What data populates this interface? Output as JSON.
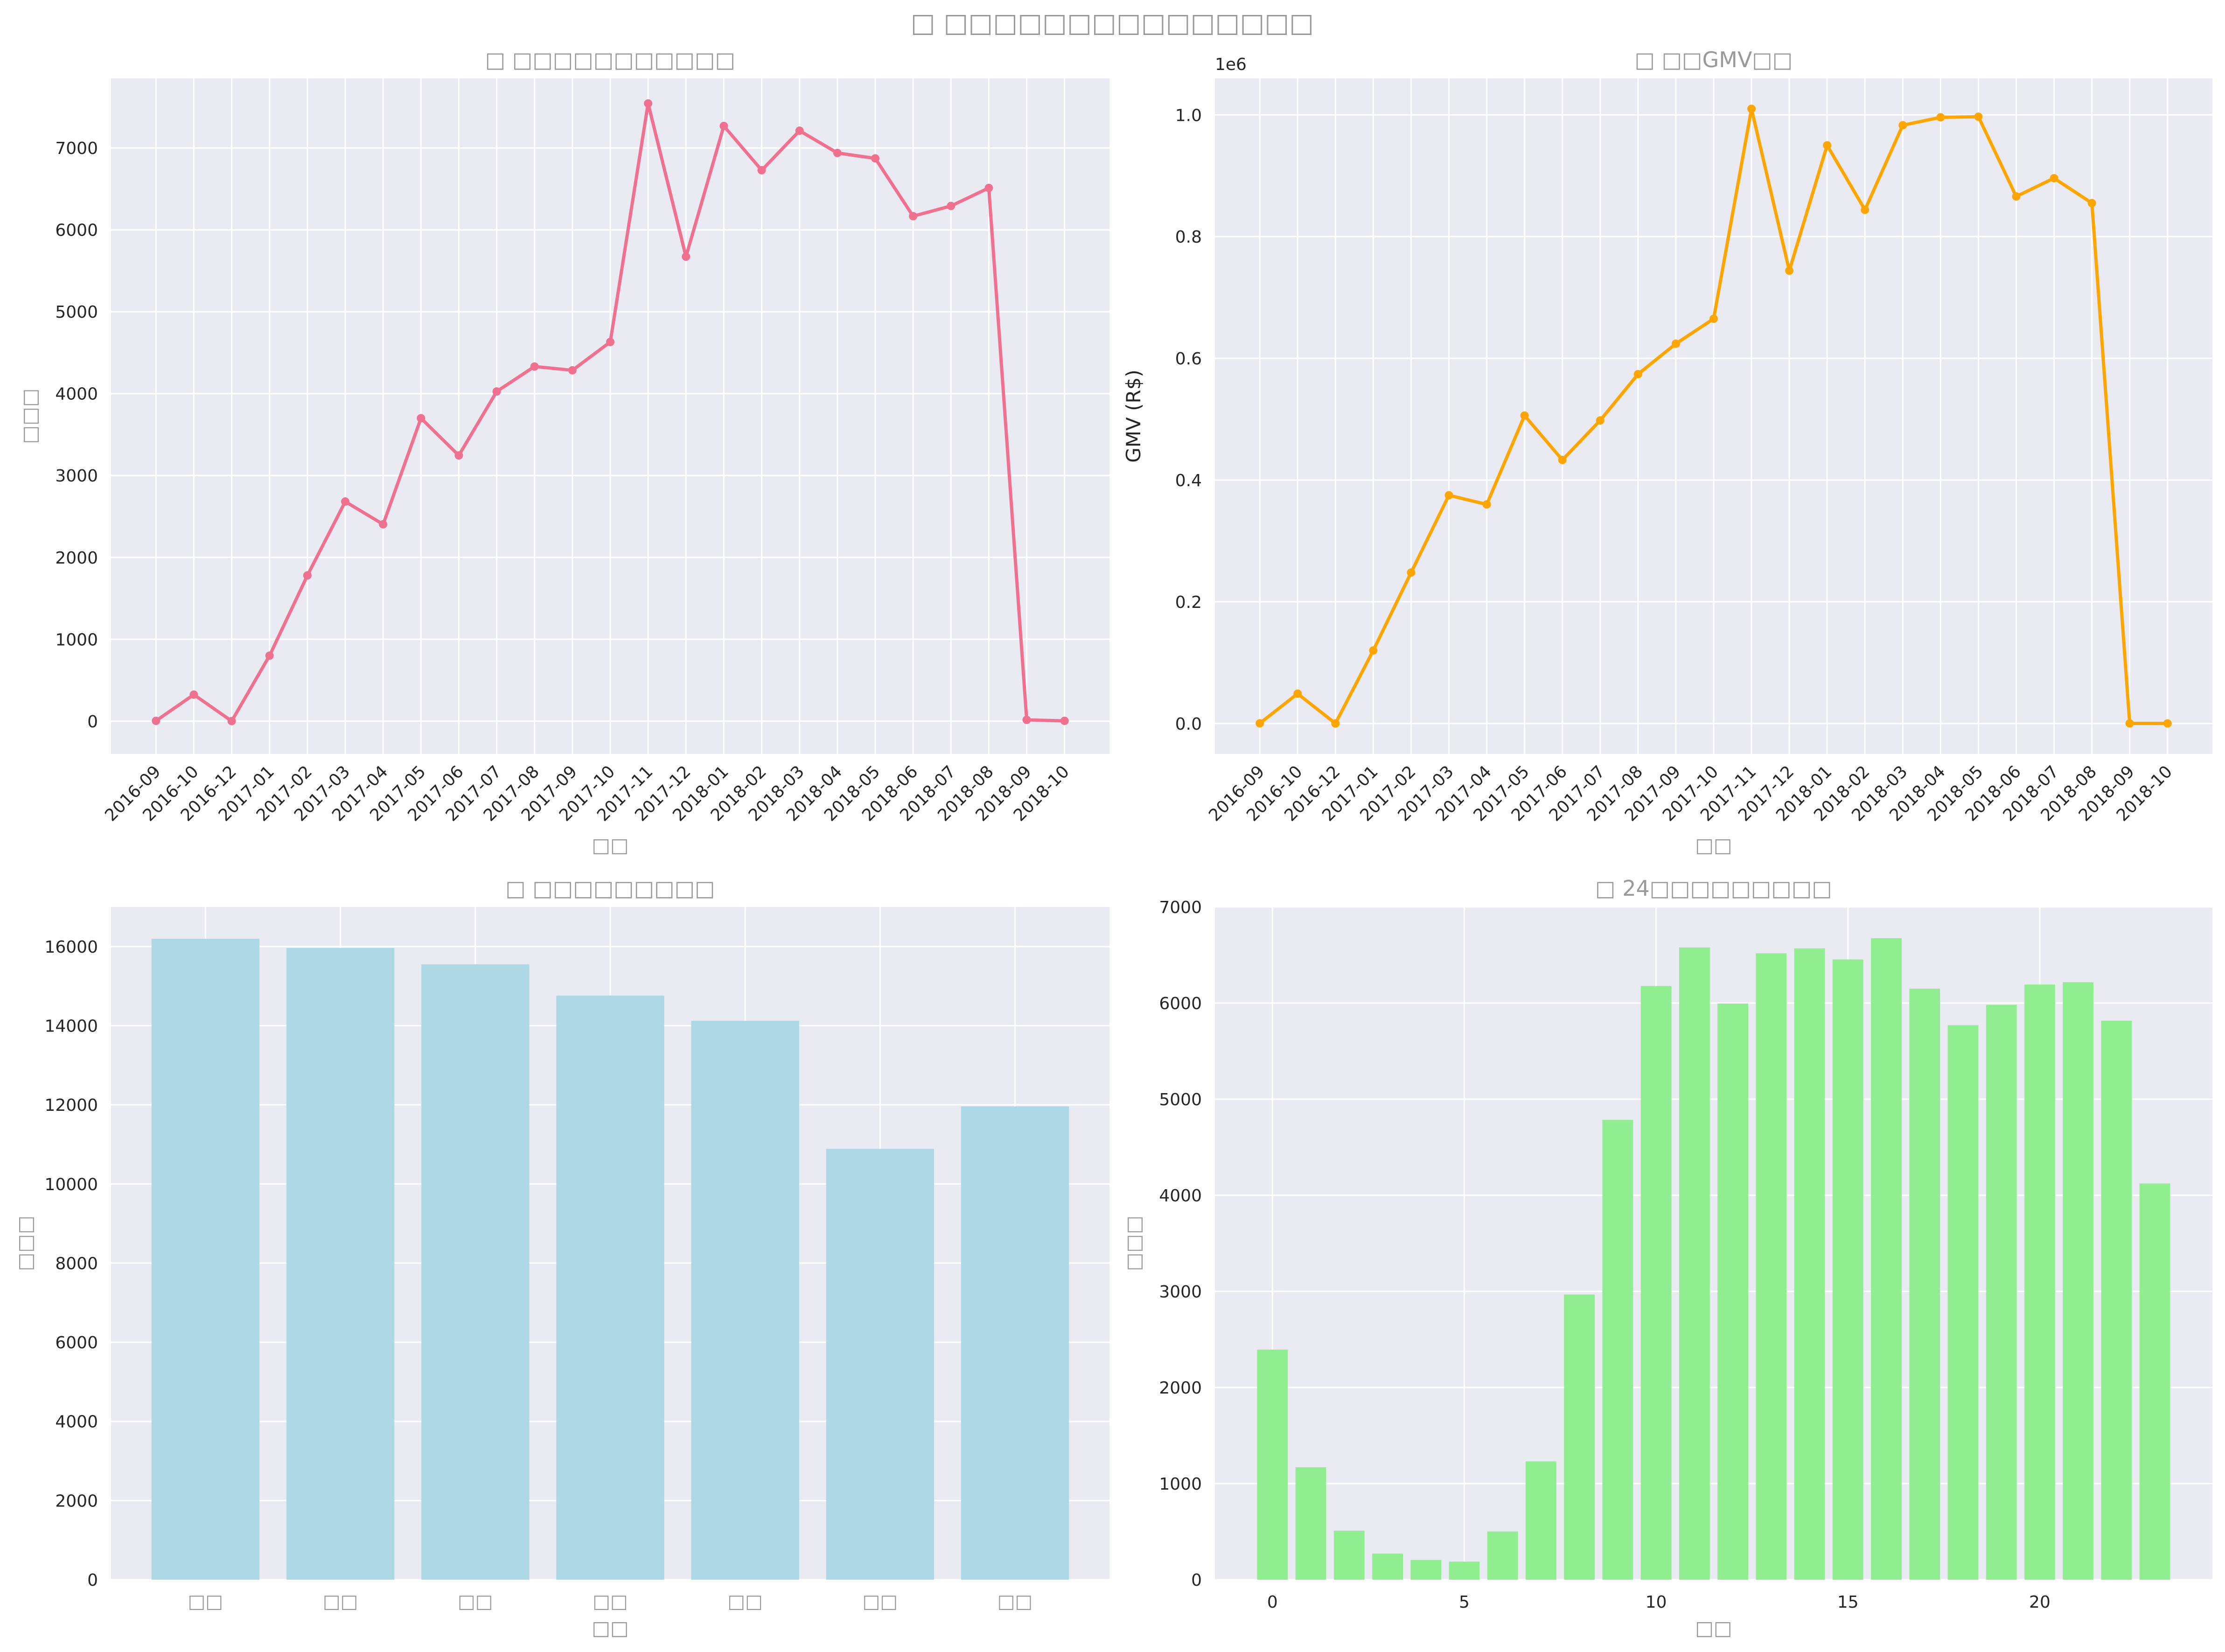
{
  "figure": {
    "suptitle": "□ □□□□□□□□□□□□□□□"
  },
  "chart_data": [
    {
      "id": "orders",
      "type": "line",
      "title": "□ □□□□□□□□□□□",
      "xlabel": "□□",
      "ylabel": "□□□",
      "ylim": [
        -400,
        7850
      ],
      "yticks": [
        0,
        1000,
        2000,
        3000,
        4000,
        5000,
        6000,
        7000
      ],
      "color": "#f07090",
      "categories": [
        "2016-09",
        "2016-10",
        "2016-12",
        "2017-01",
        "2017-02",
        "2017-03",
        "2017-04",
        "2017-05",
        "2017-06",
        "2017-07",
        "2017-08",
        "2017-09",
        "2017-10",
        "2017-11",
        "2017-12",
        "2018-01",
        "2018-02",
        "2018-03",
        "2018-04",
        "2018-05",
        "2018-06",
        "2018-07",
        "2018-08",
        "2018-09",
        "2018-10"
      ],
      "values": [
        4,
        324,
        1,
        800,
        1780,
        2682,
        2404,
        3700,
        3245,
        4026,
        4331,
        4285,
        4631,
        7544,
        5673,
        7269,
        6728,
        7211,
        6939,
        6873,
        6167,
        6292,
        6512,
        16,
        4
      ]
    },
    {
      "id": "gmv",
      "type": "line",
      "title": "□ □□GMV□□",
      "xlabel": "□□",
      "ylabel": "GMV (R$)",
      "offset_label": "1e6",
      "ylim": [
        -0.05,
        1.06
      ],
      "yticks": [
        "0.0",
        "0.2",
        "0.4",
        "0.6",
        "0.8",
        "1.0"
      ],
      "color": "#ffa500",
      "categories": [
        "2016-09",
        "2016-10",
        "2016-12",
        "2017-01",
        "2017-02",
        "2017-03",
        "2017-04",
        "2017-05",
        "2017-06",
        "2017-07",
        "2017-08",
        "2017-09",
        "2017-10",
        "2017-11",
        "2017-12",
        "2018-01",
        "2018-02",
        "2018-03",
        "2018-04",
        "2018-05",
        "2018-06",
        "2018-07",
        "2018-08",
        "2018-09",
        "2018-10"
      ],
      "values": [
        0.0003,
        0.049,
        2e-05,
        0.12,
        0.248,
        0.375,
        0.36,
        0.506,
        0.433,
        0.498,
        0.574,
        0.624,
        0.665,
        1.01,
        0.744,
        0.95,
        0.844,
        0.983,
        0.996,
        0.997,
        0.866,
        0.896,
        0.855,
        0.0002,
        0.0001
      ]
    },
    {
      "id": "weekday",
      "type": "bar",
      "title": "□ □□□□□□□□□",
      "xlabel": "□□",
      "ylabel": "□□□",
      "ylim": [
        0,
        17000
      ],
      "yticks": [
        0,
        2000,
        4000,
        6000,
        8000,
        10000,
        12000,
        14000,
        16000
      ],
      "color": "#add8e6",
      "categories": [
        "□□",
        "□□",
        "□□",
        "□□",
        "□□",
        "□□",
        "□□"
      ],
      "values": [
        16196,
        15963,
        15552,
        14761,
        14122,
        10887,
        11960
      ]
    },
    {
      "id": "hourly",
      "type": "bar",
      "title": "□ 24□□□□□□□□□",
      "xlabel": "□□",
      "ylabel": "□□□",
      "ylim": [
        0,
        7000
      ],
      "xlim": [
        -1.5,
        24.5
      ],
      "yticks": [
        0,
        1000,
        2000,
        3000,
        4000,
        5000,
        6000,
        7000
      ],
      "xticks": [
        0,
        5,
        10,
        15,
        20
      ],
      "color": "#90ee90",
      "x": [
        0,
        1,
        2,
        3,
        4,
        5,
        6,
        7,
        8,
        9,
        10,
        11,
        12,
        13,
        14,
        15,
        16,
        17,
        18,
        19,
        20,
        21,
        22,
        23
      ],
      "values": [
        2394,
        1170,
        510,
        272,
        206,
        188,
        502,
        1231,
        2967,
        4785,
        6177,
        6578,
        5995,
        6518,
        6569,
        6454,
        6675,
        6150,
        5769,
        5982,
        6193,
        6217,
        5816,
        4123
      ]
    }
  ]
}
